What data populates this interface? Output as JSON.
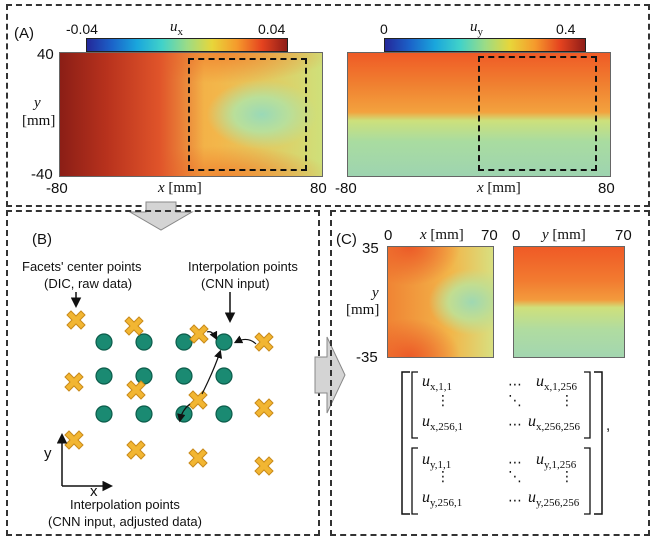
{
  "panelA": {
    "label": "(A)",
    "left": {
      "cbar_min": "-0.04",
      "cbar_max": "0.04",
      "var": "u",
      "var_sub": "x",
      "y_top": "40",
      "y_bottom": "-40",
      "y_axis": "y",
      "y_unit": "[mm]",
      "x_left": "-80",
      "x_right": "80",
      "x_axis": "x",
      "x_unit": "[mm]"
    },
    "right": {
      "cbar_min": "0",
      "cbar_max": "0.4",
      "var": "u",
      "var_sub": "y",
      "x_left": "-80",
      "x_right": "80",
      "x_axis": "x",
      "x_unit": "[mm]"
    }
  },
  "panelB": {
    "label": "(B)",
    "facets_label_1": "Facets' center points",
    "facets_label_2": "(DIC, raw data)",
    "interp_label_1": "Interpolation points",
    "interp_label_2": "(CNN input)",
    "adjusted_label_1": "Interpolation points",
    "adjusted_label_2": "(CNN input, adjusted data)",
    "axis_y": "y",
    "axis_x": "x",
    "colors": {
      "cross": "#f2b632",
      "cross_edge": "#c98a1a",
      "circle": "#1a8a72",
      "circle_edge": "#0c5c4a"
    }
  },
  "panelC": {
    "label": "(C)",
    "y_top": "35",
    "y_bottom": "-35",
    "y_axis": "y",
    "y_unit": "[mm]",
    "map1": {
      "x0": "0",
      "x_axis": "x",
      "x_unit": "[mm]",
      "x1": "70"
    },
    "map2": {
      "x0": "0",
      "x_axis": "y",
      "x_unit": "[mm]",
      "x1": "70"
    },
    "matrix": {
      "ux_11": "u",
      "ux_11_sub": "x,1,1",
      "ux_1n": "u",
      "ux_1n_sub": "x,1,256",
      "ux_n1": "u",
      "ux_n1_sub": "x,256,1",
      "ux_nn": "u",
      "ux_nn_sub": "x,256,256",
      "uy_11": "u",
      "uy_11_sub": "y,1,1",
      "uy_1n": "u",
      "uy_1n_sub": "y,1,256",
      "uy_n1": "u",
      "uy_n1_sub": "y,256,1",
      "uy_nn": "u",
      "uy_nn_sub": "y,256,256",
      "hdots": "⋯",
      "vdots": "⋮",
      "ddots": "⋱",
      "comma": ","
    }
  }
}
